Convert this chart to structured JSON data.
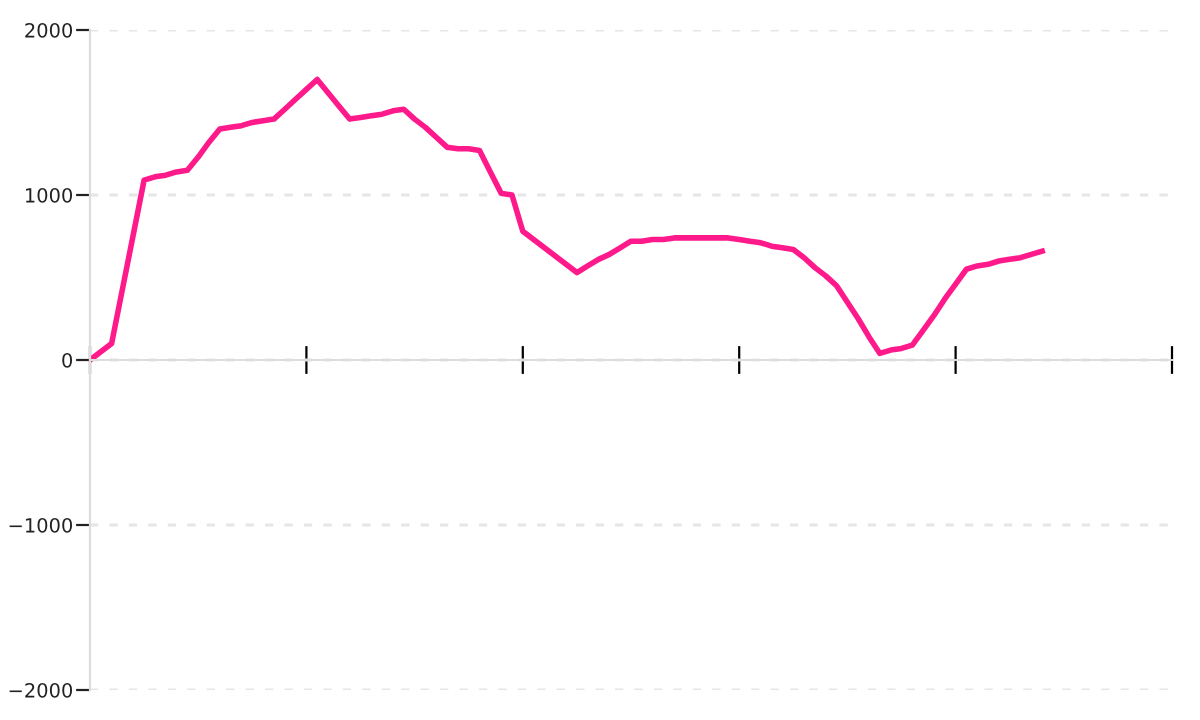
{
  "chart_data": {
    "type": "line",
    "categories": [
      null,
      null,
      null,
      null,
      null,
      null,
      null,
      null,
      null,
      null,
      null,
      null,
      null,
      null,
      null,
      null,
      null,
      null,
      null,
      null,
      null,
      null,
      null,
      null,
      null,
      null,
      null,
      null,
      null,
      null,
      null,
      null,
      null,
      null,
      null,
      null,
      null,
      null,
      null,
      null,
      null,
      null,
      null,
      null,
      null,
      null,
      null,
      null,
      null,
      null,
      null,
      null,
      null,
      null,
      null,
      null,
      null,
      null,
      null,
      null,
      null,
      null,
      null,
      null,
      null,
      null,
      null,
      null,
      null,
      null,
      null,
      null,
      null,
      null,
      null,
      null,
      null,
      null,
      null,
      null,
      null,
      null,
      null,
      null,
      null,
      null,
      null,
      null,
      null,
      null,
      null,
      null,
      null,
      null,
      null,
      null,
      null,
      null,
      null,
      null,
      null
    ],
    "series": [
      {
        "color": "#ff1a8c",
        "values": [
          0,
          50,
          100,
          430,
          760,
          1090,
          1110,
          1120,
          1140,
          1150,
          1230,
          1320,
          1400,
          1410,
          1420,
          1440,
          1450,
          1460,
          1520,
          1580,
          1640,
          1700,
          1620,
          1540,
          1460,
          1470,
          1480,
          1490,
          1510,
          1520,
          1460,
          1410,
          1350,
          1290,
          1280,
          1280,
          1270,
          1140,
          1010,
          1000,
          780,
          730,
          680,
          630,
          580,
          530,
          570,
          610,
          640,
          680,
          720,
          720,
          730,
          730,
          740,
          740,
          740,
          740,
          740,
          740,
          730,
          720,
          710,
          690,
          680,
          670,
          620,
          560,
          510,
          450,
          350,
          250,
          140,
          40,
          60,
          70,
          90,
          180,
          270,
          370,
          460,
          550,
          570,
          580,
          600,
          610,
          620,
          640,
          660,
          null,
          null,
          null,
          null,
          null,
          null,
          null,
          null,
          null,
          null,
          null,
          null
        ]
      }
    ],
    "ylim": [
      -2000,
      2000
    ],
    "yticks": [
      -2000,
      -1000,
      0,
      1000,
      2000
    ],
    "grid": "y",
    "tick_labels": "y",
    "marker": "none",
    "line_style": "solid",
    "legend": false
  }
}
